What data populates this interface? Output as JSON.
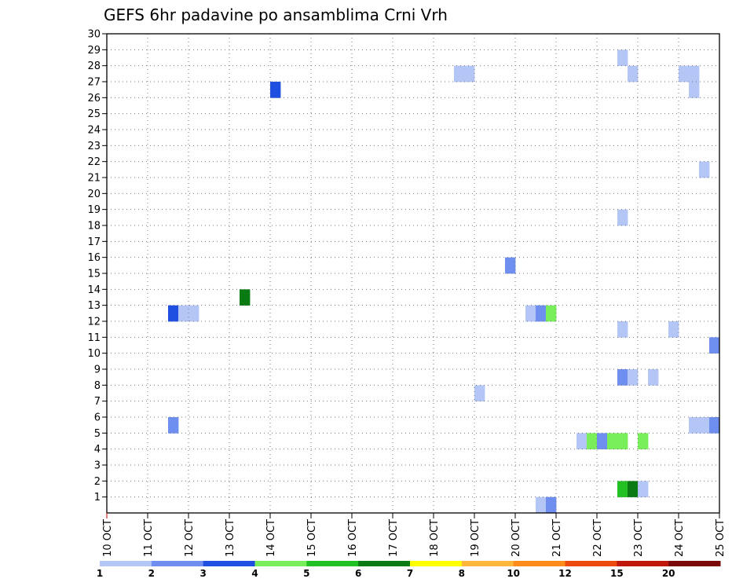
{
  "chart_data": {
    "type": "heatmap",
    "title": "GEFS 6hr padavine po ansamblima Crni Vrh",
    "x_ticks": [
      "10 OCT",
      "11 OCT",
      "12 OCT",
      "13 OCT",
      "14 OCT",
      "15 OCT",
      "16 OCT",
      "17 OCT",
      "18 OCT",
      "19 OCT",
      "20 OCT",
      "21 OCT",
      "22 OCT",
      "23 OCT",
      "24 OCT",
      "25 OCT"
    ],
    "y_ticks": [
      1,
      2,
      3,
      4,
      5,
      6,
      7,
      8,
      9,
      10,
      11,
      12,
      13,
      14,
      15,
      16,
      17,
      18,
      19,
      20,
      21,
      22,
      23,
      24,
      25,
      26,
      27,
      28,
      29,
      30
    ],
    "xlim": [
      0,
      60
    ],
    "ylim": [
      0,
      30
    ],
    "grid": true,
    "legend_labels": [
      "1",
      "2",
      "3",
      "4",
      "5",
      "6",
      "7",
      "8",
      "10",
      "12",
      "15",
      "20"
    ],
    "color_scale": [
      "#b3c6f5",
      "#6f8ff0",
      "#1f4fe0",
      "#78ee5a",
      "#22c022",
      "#0a7a12",
      "#ffff00",
      "#ffb63a",
      "#ff8c1a",
      "#ee4a10",
      "#c01808",
      "#7a0808"
    ],
    "cells": [
      {
        "t": 6,
        "m": 12,
        "v": 3
      },
      {
        "t": 7,
        "m": 12,
        "v": 1
      },
      {
        "t": 8,
        "m": 12,
        "v": 1
      },
      {
        "t": 6,
        "m": 5,
        "v": 2
      },
      {
        "t": 13,
        "m": 13,
        "v": 6
      },
      {
        "t": 16,
        "m": 26,
        "v": 3
      },
      {
        "t": 34,
        "m": 27,
        "v": 1
      },
      {
        "t": 35,
        "m": 27,
        "v": 1
      },
      {
        "t": 36,
        "m": 7,
        "v": 1
      },
      {
        "t": 39,
        "m": 15,
        "v": 2
      },
      {
        "t": 41,
        "m": 12,
        "v": 1
      },
      {
        "t": 42,
        "m": 12,
        "v": 2
      },
      {
        "t": 43,
        "m": 12,
        "v": 4
      },
      {
        "t": 42,
        "m": 0,
        "v": 1
      },
      {
        "t": 43,
        "m": 0,
        "v": 2
      },
      {
        "t": 46,
        "m": 4,
        "v": 1
      },
      {
        "t": 47,
        "m": 4,
        "v": 4
      },
      {
        "t": 48,
        "m": 4,
        "v": 2
      },
      {
        "t": 49,
        "m": 4,
        "v": 4
      },
      {
        "t": 50,
        "m": 4,
        "v": 4
      },
      {
        "t": 50,
        "m": 28,
        "v": 1
      },
      {
        "t": 50,
        "m": 18,
        "v": 1
      },
      {
        "t": 50,
        "m": 11,
        "v": 1
      },
      {
        "t": 50,
        "m": 8,
        "v": 2
      },
      {
        "t": 51,
        "m": 8,
        "v": 1
      },
      {
        "t": 53,
        "m": 8,
        "v": 1
      },
      {
        "t": 50,
        "m": 1,
        "v": 5
      },
      {
        "t": 51,
        "m": 1,
        "v": 6
      },
      {
        "t": 52,
        "m": 1,
        "v": 1
      },
      {
        "t": 51,
        "m": 27,
        "v": 1
      },
      {
        "t": 52,
        "m": 4,
        "v": 4
      },
      {
        "t": 55,
        "m": 11,
        "v": 1
      },
      {
        "t": 56,
        "m": 27,
        "v": 1
      },
      {
        "t": 57,
        "m": 27,
        "v": 1
      },
      {
        "t": 57,
        "m": 26,
        "v": 1
      },
      {
        "t": 58,
        "m": 21,
        "v": 1
      },
      {
        "t": 57,
        "m": 5,
        "v": 1
      },
      {
        "t": 58,
        "m": 5,
        "v": 1
      },
      {
        "t": 59,
        "m": 5,
        "v": 2
      },
      {
        "t": 59,
        "m": 10,
        "v": 2
      }
    ]
  }
}
